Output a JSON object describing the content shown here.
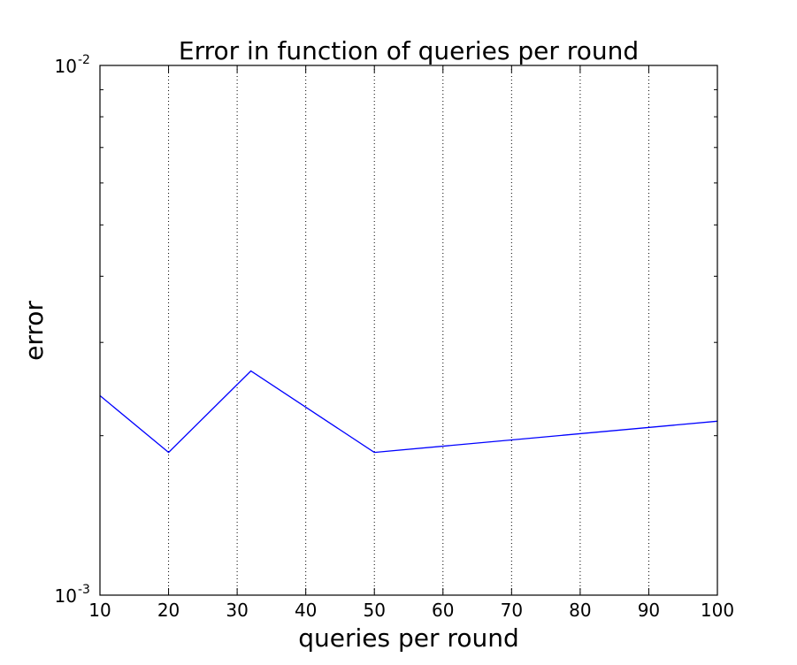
{
  "chart_data": {
    "type": "line",
    "title": "Error in function of queries per round",
    "xlabel": "queries per round",
    "ylabel": "error",
    "x": [
      10,
      20,
      32,
      50,
      100
    ],
    "series": [
      {
        "values": [
          0.00238,
          0.00186,
          0.00265,
          0.00186,
          0.00213
        ],
        "color": "#0000ff"
      }
    ],
    "xlim": [
      10,
      100
    ],
    "ylim": [
      0.001,
      0.01
    ],
    "yscale": "log",
    "x_ticks": [
      "10",
      "20",
      "30",
      "40",
      "50",
      "60",
      "70",
      "80",
      "90",
      "100"
    ],
    "y_ticks": [
      {
        "base": "10",
        "exp": "-3"
      },
      {
        "base": "10",
        "exp": "-2"
      }
    ],
    "grid": "vertical dotted",
    "colors": {
      "line": "#0000ff",
      "axes": "#000000",
      "grid": "#000000"
    }
  }
}
